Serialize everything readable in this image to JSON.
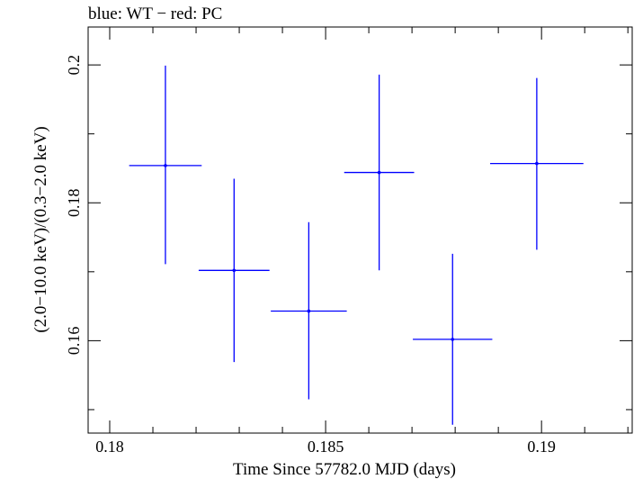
{
  "chart_data": {
    "type": "scatter",
    "title": "blue: WT − red: PC",
    "xlabel": "Time Since 57782.0 MJD (days)",
    "ylabel": "(2.0−10.0 keV)/(0.3−2.0 keV)",
    "xlim": [
      0.1795,
      0.1921
    ],
    "ylim": [
      0.1466,
      0.2055
    ],
    "x_ticks": [
      0.18,
      0.185,
      0.19
    ],
    "x_tick_labels": [
      "0.18",
      "0.185",
      "0.19"
    ],
    "y_ticks": [
      0.16,
      0.18,
      0.2
    ],
    "y_tick_labels": [
      "0.16",
      "0.18",
      "0.2"
    ],
    "grid": false,
    "series": [
      {
        "name": "WT",
        "color": "#0000ff",
        "points": [
          {
            "x": 0.18129,
            "y": 0.1854,
            "xerr": 0.00084,
            "yerr_low": 0.0143,
            "yerr_high": 0.0145
          },
          {
            "x": 0.18288,
            "y": 0.1702,
            "xerr": 0.00082,
            "yerr_low": 0.0133,
            "yerr_high": 0.0133
          },
          {
            "x": 0.18461,
            "y": 0.1643,
            "xerr": 0.00088,
            "yerr_low": 0.0128,
            "yerr_high": 0.0129
          },
          {
            "x": 0.18624,
            "y": 0.1844,
            "xerr": 0.00081,
            "yerr_low": 0.0142,
            "yerr_high": 0.0142
          },
          {
            "x": 0.18794,
            "y": 0.1602,
            "xerr": 0.00092,
            "yerr_low": 0.0124,
            "yerr_high": 0.0124
          },
          {
            "x": 0.18989,
            "y": 0.1857,
            "xerr": 0.00108,
            "yerr_low": 0.0125,
            "yerr_high": 0.0124
          }
        ]
      }
    ]
  }
}
